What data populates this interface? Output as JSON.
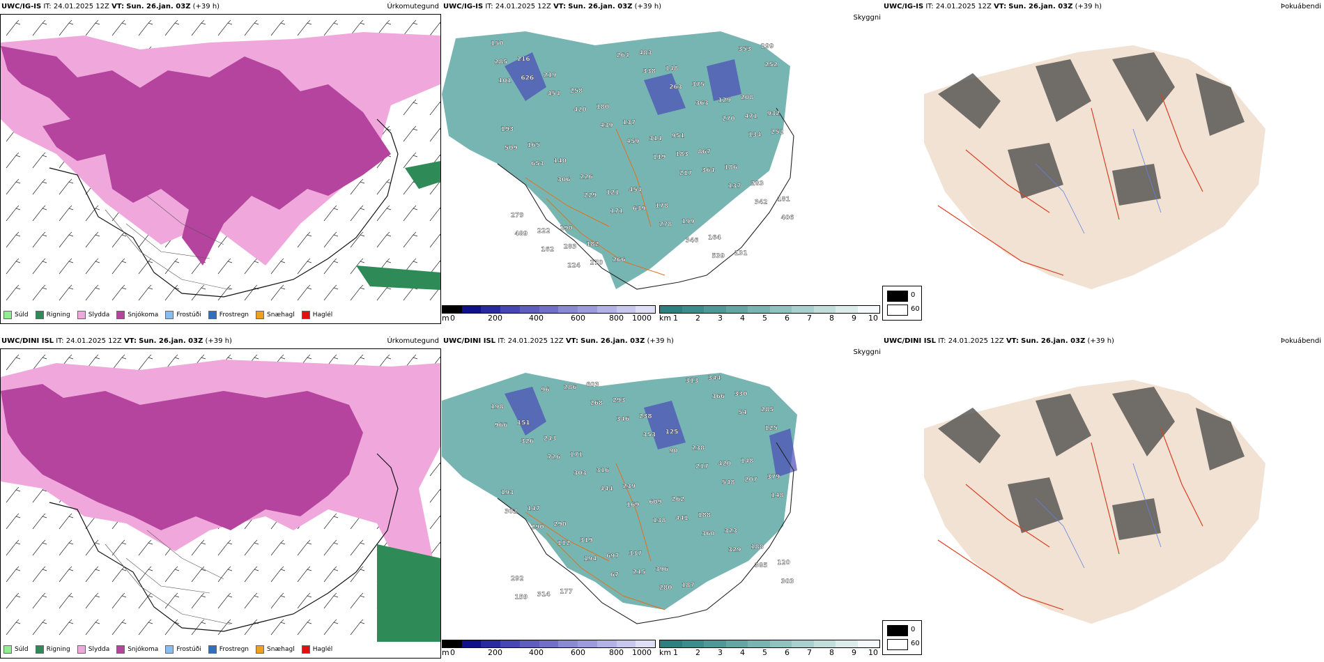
{
  "rows": [
    {
      "model": "UWC/IG-IS",
      "it_label": "IT:",
      "it_value": "24.01.2025 12Z",
      "vt_label": "VT:",
      "vt_value": "Sun. 26.jan. 03Z",
      "offset": "(+39 h)",
      "panel1_kind": "Úrkomutegund",
      "panel2_kind": "Skyggni",
      "panel3_kind": "Þokuábendi",
      "peaks": [
        "150",
        "951",
        "190",
        "208",
        "454",
        "216",
        "867",
        "182",
        "932",
        "178",
        "219",
        "186",
        "266",
        "193",
        "199",
        "258",
        "283",
        "483",
        "165",
        "164",
        "180",
        "181",
        "148",
        "140",
        "131",
        "137",
        "279",
        "375",
        "226",
        "299",
        "314",
        "222",
        "129",
        "121",
        "285",
        "183",
        "283",
        "471",
        "639",
        "626",
        "364",
        "270",
        "252",
        "278",
        "454",
        "137",
        "264",
        "509",
        "346",
        "420",
        "342",
        "338",
        "653",
        "539",
        "439",
        "406",
        "263",
        "306",
        "353",
        "459",
        "489",
        "363",
        "229",
        "252",
        "119",
        "162",
        "270",
        "171",
        "101",
        "217",
        "224",
        "134"
      ]
    },
    {
      "model": "UWC/DINI ISL",
      "it_label": "IT:",
      "it_value": "24.01.2025 12Z",
      "vt_label": "VT:",
      "vt_value": "Sun. 26.jan. 03Z",
      "offset": "(+39 h)",
      "panel1_kind": "Úrkomutegund",
      "panel2_kind": "Skyggni",
      "panel3_kind": "Þokuábendi",
      "peaks": [
        "198",
        "262",
        "177",
        "148",
        "337",
        "151",
        "188",
        "603",
        "379",
        "396",
        "243",
        "323",
        "293",
        "193",
        "187",
        "171",
        "188",
        "238",
        "147",
        "344",
        "316",
        "120",
        "125",
        "290",
        "330",
        "239",
        "292",
        "238",
        "319",
        "285",
        "609",
        "314",
        "420",
        "697",
        "966",
        "441",
        "286",
        "207",
        "215",
        "326",
        "360",
        "268",
        "148",
        "280",
        "726",
        "329",
        "346",
        "302",
        "313",
        "303",
        "385",
        "353",
        "290",
        "366",
        "444",
        "303",
        "90",
        "112",
        "54",
        "169",
        "159",
        "217",
        "194",
        "125",
        "138",
        "96",
        "548",
        "67"
      ]
    }
  ],
  "ptype_legend": [
    {
      "label": "Súld",
      "color": "#90ee90"
    },
    {
      "label": "Rigning",
      "color": "#2e8b57"
    },
    {
      "label": "Slydda",
      "color": "#f0a8dc"
    },
    {
      "label": "Snjókoma",
      "color": "#b4449e"
    },
    {
      "label": "Frostúði",
      "color": "#87bdf0"
    },
    {
      "label": "Frostregn",
      "color": "#2f6fc0"
    },
    {
      "label": "Snæhagl",
      "color": "#f0a020"
    },
    {
      "label": "Haglél",
      "color": "#e01010"
    }
  ],
  "height_bar": {
    "unit": "m",
    "ticks": [
      "0",
      "200",
      "400",
      "600",
      "800",
      "1000"
    ],
    "colors": [
      "#000000",
      "#10108a",
      "#2a2aa0",
      "#4646b4",
      "#5e5ebe",
      "#7070c8",
      "#8a8ad2",
      "#9c9cdc",
      "#b2b2e6",
      "#c8c8ee",
      "#dedef6"
    ]
  },
  "vis_bar": {
    "unit": "km",
    "ticks": [
      "1",
      "2",
      "3",
      "4",
      "5",
      "6",
      "7",
      "8",
      "9",
      "10"
    ],
    "colors": [
      "#2e8080",
      "#3c8c8c",
      "#4e9898",
      "#64a6a4",
      "#7ab4b2",
      "#90c2c0",
      "#a8d0ce",
      "#c2dedc",
      "#dcecea",
      "#f4faf9"
    ]
  },
  "fog_legend": {
    "black_label": "0",
    "white_label": "60"
  }
}
